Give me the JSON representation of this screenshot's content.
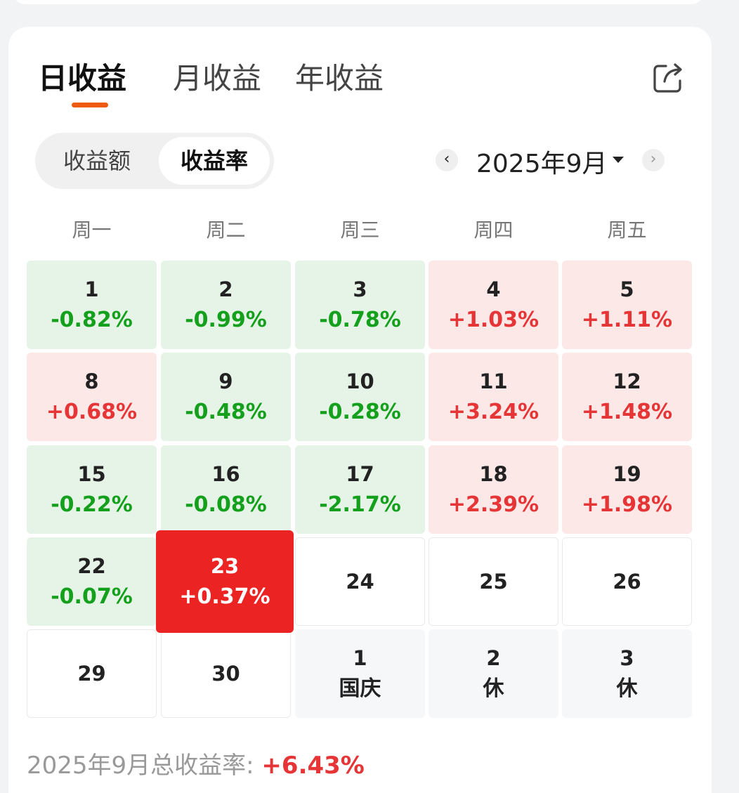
{
  "tabs": [
    {
      "label": "日收益",
      "active": true
    },
    {
      "label": "月收益",
      "active": false
    },
    {
      "label": "年收益",
      "active": false
    }
  ],
  "segment": {
    "options": [
      "收益额",
      "收益率"
    ],
    "selected": "收益率"
  },
  "month": {
    "label": "2025年9月",
    "prev_icon": "chevron-left-icon",
    "next_icon": "chevron-right-icon"
  },
  "weekdays": [
    "周一",
    "周二",
    "周三",
    "周四",
    "周五"
  ],
  "rows": [
    [
      {
        "day": "1",
        "value": "-0.82%",
        "type": "down"
      },
      {
        "day": "2",
        "value": "-0.99%",
        "type": "down"
      },
      {
        "day": "3",
        "value": "-0.78%",
        "type": "down"
      },
      {
        "day": "4",
        "value": "+1.03%",
        "type": "up"
      },
      {
        "day": "5",
        "value": "+1.11%",
        "type": "up"
      }
    ],
    [
      {
        "day": "8",
        "value": "+0.68%",
        "type": "up"
      },
      {
        "day": "9",
        "value": "-0.48%",
        "type": "down"
      },
      {
        "day": "10",
        "value": "-0.28%",
        "type": "down"
      },
      {
        "day": "11",
        "value": "+3.24%",
        "type": "up"
      },
      {
        "day": "12",
        "value": "+1.48%",
        "type": "up"
      }
    ],
    [
      {
        "day": "15",
        "value": "-0.22%",
        "type": "down"
      },
      {
        "day": "16",
        "value": "-0.08%",
        "type": "down"
      },
      {
        "day": "17",
        "value": "-2.17%",
        "type": "down"
      },
      {
        "day": "18",
        "value": "+2.39%",
        "type": "up"
      },
      {
        "day": "19",
        "value": "+1.98%",
        "type": "up"
      }
    ],
    [
      {
        "day": "22",
        "value": "-0.07%",
        "type": "down"
      },
      {
        "day": "23",
        "value": "+0.37%",
        "type": "selected"
      },
      {
        "day": "24",
        "value": "",
        "type": "blank"
      },
      {
        "day": "25",
        "value": "",
        "type": "blank"
      },
      {
        "day": "26",
        "value": "",
        "type": "blank"
      }
    ],
    [
      {
        "day": "29",
        "value": "",
        "type": "blank"
      },
      {
        "day": "30",
        "value": "",
        "type": "blank"
      },
      {
        "day": "1",
        "value": "国庆",
        "type": "holiday"
      },
      {
        "day": "2",
        "value": "休",
        "type": "holiday"
      },
      {
        "day": "3",
        "value": "休",
        "type": "holiday"
      }
    ]
  ],
  "summary": {
    "label": "2025年9月总收益率: ",
    "value": "+6.43%"
  },
  "colors": {
    "up": "#e53537",
    "down": "#14a01c",
    "selected": "#eb2323",
    "accent": "#ee5a0e"
  }
}
